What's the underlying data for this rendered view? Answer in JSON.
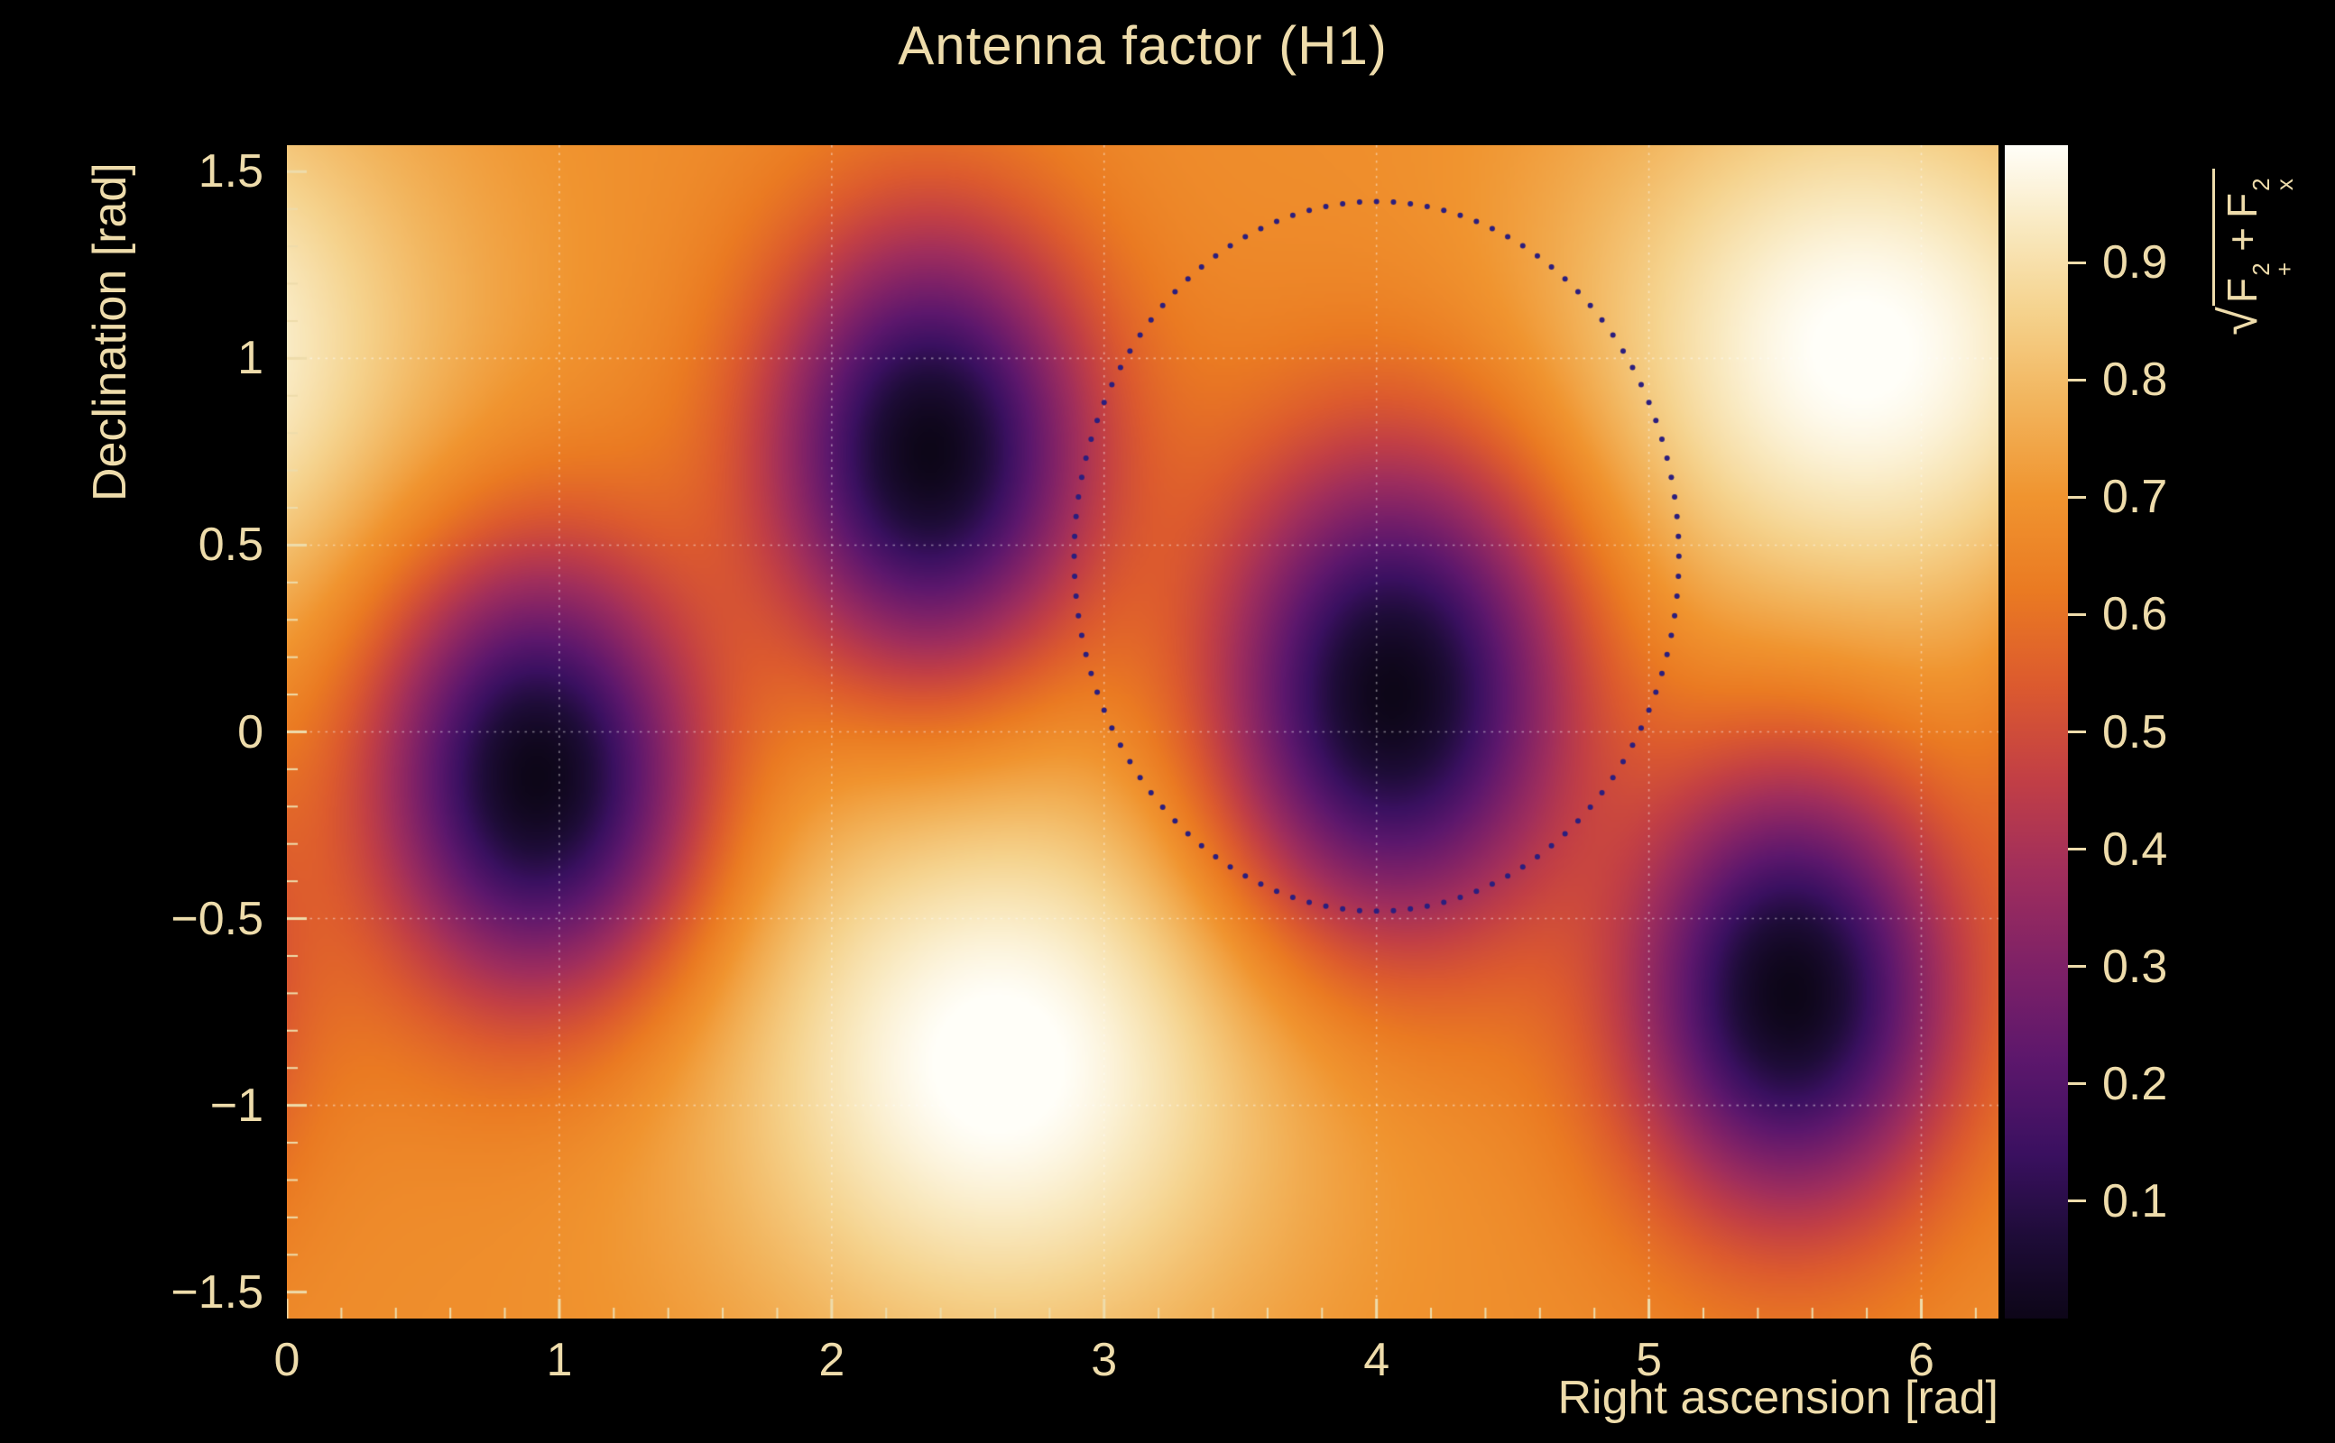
{
  "chart_data": {
    "type": "heatmap",
    "title": "Antenna factor (H1)",
    "xlabel": "Right ascension [rad]",
    "ylabel": "Declination [rad]",
    "colorbar_label": "sqrt(F_+^2 + F_x^2)",
    "x_range": [
      0,
      6.2832
    ],
    "y_range": [
      -1.5708,
      1.5708
    ],
    "z_range": [
      0,
      1
    ],
    "grid": true,
    "x_ticks": [
      {
        "v": 0,
        "label": "0",
        "grid": false
      },
      {
        "v": 1,
        "label": "1",
        "grid": true
      },
      {
        "v": 2,
        "label": "2",
        "grid": true
      },
      {
        "v": 3,
        "label": "3",
        "grid": true
      },
      {
        "v": 4,
        "label": "4",
        "grid": true
      },
      {
        "v": 5,
        "label": "5",
        "grid": true
      },
      {
        "v": 6,
        "label": "6",
        "grid": true
      }
    ],
    "y_ticks": [
      {
        "v": -1.5,
        "label": "−1.5",
        "grid": false
      },
      {
        "v": -1,
        "label": "−1",
        "grid": true
      },
      {
        "v": -0.5,
        "label": "−0.5",
        "grid": true
      },
      {
        "v": 0,
        "label": "0",
        "grid": true
      },
      {
        "v": 0.5,
        "label": "0.5",
        "grid": true
      },
      {
        "v": 1,
        "label": "1",
        "grid": true
      },
      {
        "v": 1.5,
        "label": "1.5",
        "grid": false
      }
    ],
    "colorbar_ticks": [
      {
        "v": 0.1,
        "label": "0.1"
      },
      {
        "v": 0.2,
        "label": "0.2"
      },
      {
        "v": 0.3,
        "label": "0.3"
      },
      {
        "v": 0.4,
        "label": "0.4"
      },
      {
        "v": 0.5,
        "label": "0.5"
      },
      {
        "v": 0.6,
        "label": "0.6"
      },
      {
        "v": 0.7,
        "label": "0.7"
      },
      {
        "v": 0.8,
        "label": "0.8"
      },
      {
        "v": 0.9,
        "label": "0.9"
      }
    ],
    "colormap_stops": [
      [
        0.0,
        "#0d0618"
      ],
      [
        0.07,
        "#1e0c38"
      ],
      [
        0.14,
        "#3a1060"
      ],
      [
        0.22,
        "#5c176c"
      ],
      [
        0.3,
        "#7e2167"
      ],
      [
        0.38,
        "#a02e5c"
      ],
      [
        0.46,
        "#c23f45"
      ],
      [
        0.54,
        "#dc5a2e"
      ],
      [
        0.62,
        "#ea7a22"
      ],
      [
        0.7,
        "#f0942f"
      ],
      [
        0.78,
        "#f2b45c"
      ],
      [
        0.86,
        "#f5d38e"
      ],
      [
        0.93,
        "#f9e9c0"
      ],
      [
        1.0,
        "#fffef8"
      ]
    ],
    "field": {
      "base": 0.68,
      "nulls": [
        {
          "ra": 0.92,
          "dec": -0.12,
          "sigma": 0.42
        },
        {
          "ra": 2.36,
          "dec": 0.75,
          "sigma": 0.42
        },
        {
          "ra": 4.06,
          "dec": 0.1,
          "sigma": 0.46
        },
        {
          "ra": 5.52,
          "dec": -0.7,
          "sigma": 0.42
        }
      ],
      "peaks": [
        {
          "ra": 2.62,
          "dec": -0.88,
          "amp": 0.34,
          "sigma_ra": 0.72,
          "sigma_dec": 0.55
        },
        {
          "ra": 5.78,
          "dec": 1.02,
          "amp": 0.33,
          "sigma_ra": 0.72,
          "sigma_dec": 0.52
        }
      ]
    },
    "extrema": {
      "minima_radec": [
        [
          0.92,
          -0.12
        ],
        [
          2.36,
          0.75
        ],
        [
          4.06,
          0.1
        ],
        [
          5.52,
          -0.7
        ]
      ],
      "maxima_radec": [
        [
          2.62,
          -0.88
        ],
        [
          5.78,
          1.02
        ]
      ]
    },
    "overlay_ring": {
      "center_ra": 4.0,
      "center_dec": 0.47,
      "rx": 1.11,
      "ry": 0.95,
      "n_points": 112,
      "dot_radius": 3,
      "color": "#2b1e7e"
    }
  },
  "colorbar_label_parts": {
    "sqrt": "√",
    "t1": "F",
    "t1_sup": "2",
    "t1_sub": "+",
    "plus": "+",
    "t2": "F",
    "t2_sup": "2",
    "t2_sub": "x"
  },
  "colors": {
    "background": "#000000",
    "text": "#eedcab",
    "grid": "rgba(255,255,255,0.45)",
    "ring_dot": "#2b1e7e"
  }
}
